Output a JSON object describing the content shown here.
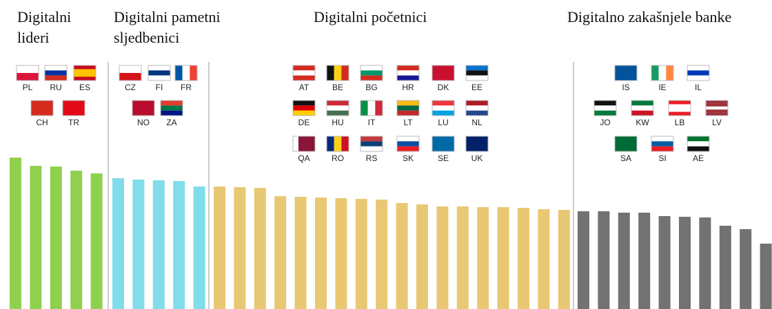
{
  "chart_data": {
    "type": "bar",
    "ylim": [
      0,
      250
    ],
    "groups": [
      {
        "name": "Digitalni lideri",
        "color": "#8fd14f",
        "countries": [
          "PL",
          "RU",
          "ES",
          "CH",
          "TR"
        ],
        "values": [
          220,
          208,
          207,
          201,
          197
        ]
      },
      {
        "name": "Digitalni pametni sljedbenici",
        "color": "#80dde9",
        "countries": [
          "CZ",
          "FI",
          "FR",
          "NO",
          "ZA"
        ],
        "values": [
          190,
          188,
          187,
          186,
          178
        ]
      },
      {
        "name": "Digitalni početnici",
        "color": "#e9c874",
        "countries": [
          "AT",
          "BE",
          "BG",
          "HR",
          "DK",
          "EE",
          "DE",
          "HU",
          "IT",
          "LT",
          "LU",
          "NL",
          "QA",
          "RO",
          "RS",
          "SK",
          "SE",
          "UK"
        ],
        "values": [
          178,
          177,
          176,
          164,
          163,
          162,
          161,
          160,
          159,
          154,
          152,
          149,
          149,
          148,
          148,
          147,
          145,
          144
        ]
      },
      {
        "name": "Digitalno zakašnjele banke",
        "color": "#727272",
        "countries": [
          "IS",
          "IE",
          "IL",
          "JO",
          "KW",
          "LB",
          "LV",
          "SA",
          "SI",
          "AE"
        ],
        "values": [
          142,
          142,
          140,
          140,
          135,
          134,
          133,
          121,
          116,
          95
        ]
      }
    ]
  }
}
